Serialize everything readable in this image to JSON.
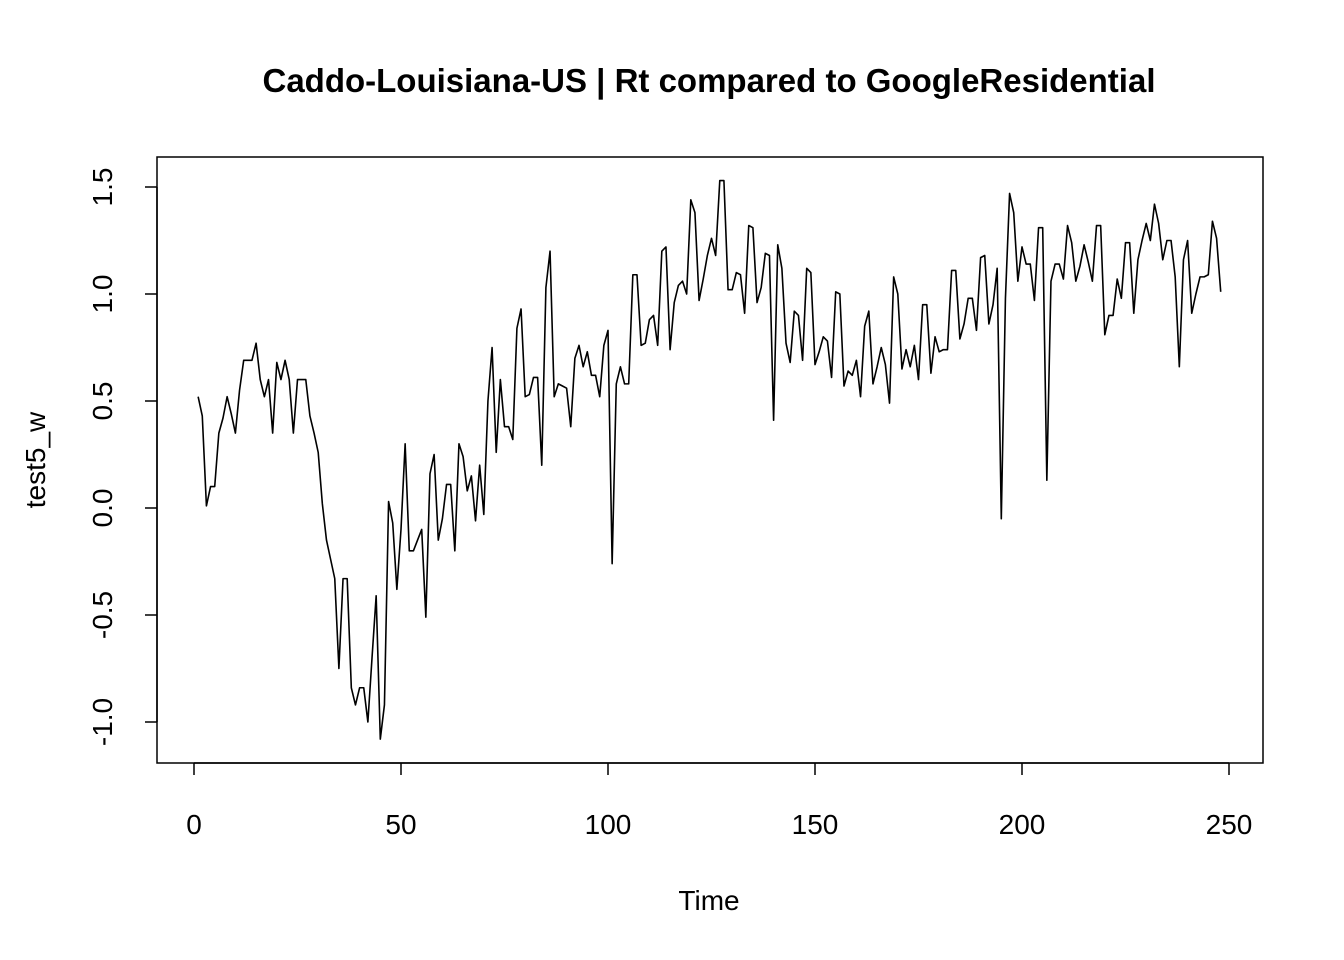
{
  "chart_data": {
    "type": "line",
    "title": "Caddo-Louisiana-US | Rt compared to GoogleResidential",
    "xlabel": "Time",
    "ylabel": "test5_w",
    "xlim": [
      0,
      250
    ],
    "ylim": [
      -1.1,
      1.55
    ],
    "x_ticks": [
      0,
      50,
      100,
      150,
      200,
      250
    ],
    "y_ticks": [
      -1.0,
      -0.5,
      0.0,
      0.5,
      1.0,
      1.5
    ],
    "x_tick_labels": [
      "0",
      "50",
      "100",
      "150",
      "200",
      "250"
    ],
    "y_tick_labels": [
      "-1.0",
      "-0.5",
      "0.0",
      "0.5",
      "1.0",
      "1.5"
    ],
    "grid": false,
    "series": [
      {
        "color": "#000000",
        "x_start": 1,
        "values": [
          0.52,
          0.43,
          0.01,
          0.1,
          0.1,
          0.35,
          0.42,
          0.52,
          0.44,
          0.35,
          0.55,
          0.69,
          0.69,
          0.69,
          0.77,
          0.6,
          0.52,
          0.6,
          0.35,
          0.68,
          0.6,
          0.69,
          0.6,
          0.35,
          0.6,
          0.6,
          0.6,
          0.43,
          0.35,
          0.26,
          0.02,
          -0.15,
          -0.24,
          -0.33,
          -0.75,
          -0.33,
          -0.33,
          -0.84,
          -0.92,
          -0.84,
          -0.84,
          -1.0,
          -0.7,
          -0.41,
          -1.08,
          -0.92,
          0.03,
          -0.07,
          -0.38,
          -0.1,
          0.3,
          -0.2,
          -0.2,
          -0.15,
          -0.1,
          -0.51,
          0.16,
          0.25,
          -0.15,
          -0.05,
          0.11,
          0.11,
          -0.2,
          0.3,
          0.24,
          0.08,
          0.15,
          -0.06,
          0.2,
          -0.03,
          0.5,
          0.75,
          0.26,
          0.6,
          0.38,
          0.38,
          0.32,
          0.84,
          0.93,
          0.52,
          0.53,
          0.61,
          0.61,
          0.2,
          1.03,
          1.2,
          0.52,
          0.58,
          0.57,
          0.56,
          0.38,
          0.7,
          0.76,
          0.66,
          0.73,
          0.62,
          0.62,
          0.52,
          0.76,
          0.83,
          -0.26,
          0.58,
          0.66,
          0.58,
          0.58,
          1.09,
          1.09,
          0.76,
          0.77,
          0.88,
          0.9,
          0.76,
          1.2,
          1.22,
          0.74,
          0.96,
          1.04,
          1.06,
          1.0,
          1.44,
          1.38,
          0.97,
          1.07,
          1.18,
          1.26,
          1.18,
          1.53,
          1.53,
          1.02,
          1.02,
          1.1,
          1.09,
          0.91,
          1.32,
          1.31,
          0.96,
          1.03,
          1.19,
          1.18,
          0.41,
          1.23,
          1.12,
          0.77,
          0.68,
          0.92,
          0.9,
          0.69,
          1.12,
          1.1,
          0.67,
          0.73,
          0.8,
          0.78,
          0.61,
          1.01,
          1.0,
          0.57,
          0.64,
          0.62,
          0.69,
          0.52,
          0.85,
          0.92,
          0.58,
          0.66,
          0.75,
          0.67,
          0.49,
          1.08,
          1.0,
          0.65,
          0.74,
          0.66,
          0.76,
          0.6,
          0.95,
          0.95,
          0.63,
          0.8,
          0.73,
          0.74,
          0.74,
          1.11,
          1.11,
          0.79,
          0.86,
          0.98,
          0.98,
          0.83,
          1.17,
          1.18,
          0.86,
          0.95,
          1.12,
          -0.05,
          0.98,
          1.47,
          1.38,
          1.06,
          1.22,
          1.14,
          1.14,
          0.97,
          1.31,
          1.31,
          0.13,
          1.06,
          1.14,
          1.14,
          1.07,
          1.32,
          1.24,
          1.06,
          1.13,
          1.23,
          1.15,
          1.06,
          1.32,
          1.32,
          0.81,
          0.9,
          0.9,
          1.07,
          0.98,
          1.24,
          1.24,
          0.91,
          1.16,
          1.25,
          1.33,
          1.25,
          1.42,
          1.33,
          1.16,
          1.25,
          1.25,
          1.08,
          0.66,
          1.16,
          1.25,
          0.91,
          1.0,
          1.08,
          1.08,
          1.09,
          1.34,
          1.26,
          1.01
        ]
      }
    ]
  }
}
